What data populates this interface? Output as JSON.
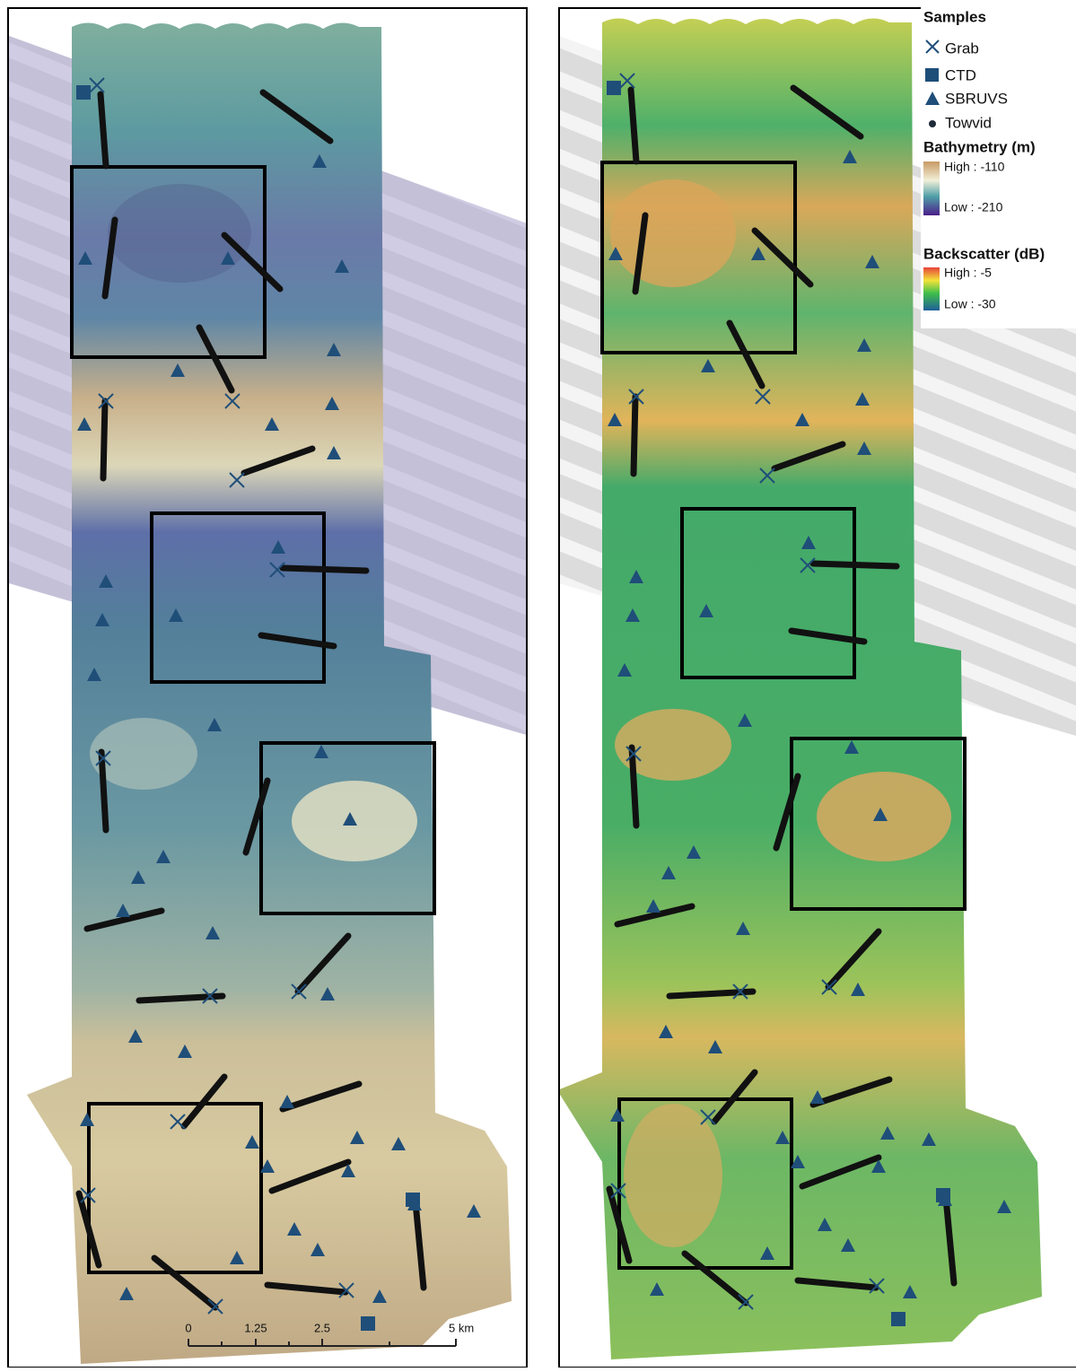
{
  "legend": {
    "title": "Samples",
    "items": [
      "Grab",
      "CTD",
      "SBRUVS",
      "Towvid"
    ],
    "bathymetry": {
      "title": "Bathymetry (m)",
      "high": "High : -110",
      "low": "Low : -210"
    },
    "backscatter": {
      "title": "Backscatter (dB)",
      "high": "High : -5",
      "low": "Low : -30"
    }
  },
  "scale_bar": {
    "labels": [
      "0",
      "1.25",
      "2.5",
      "5 km"
    ]
  }
}
